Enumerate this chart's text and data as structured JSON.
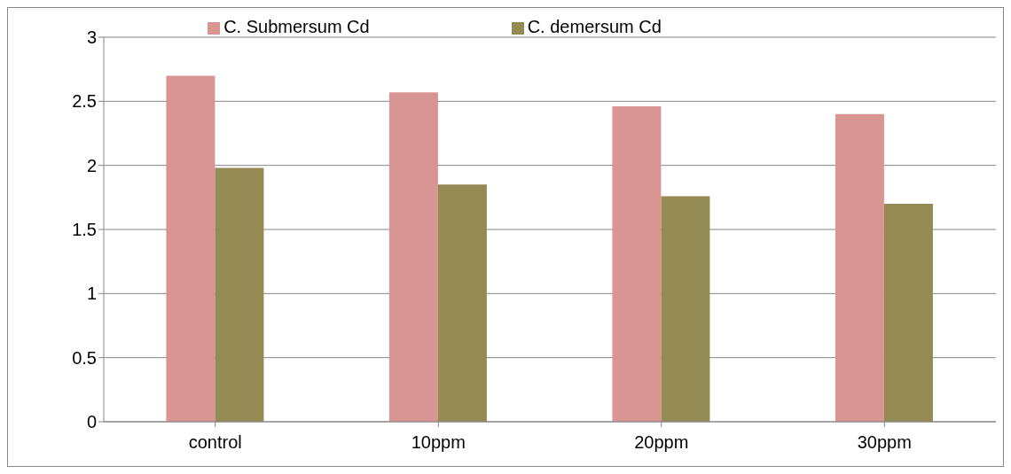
{
  "chart_data": {
    "type": "bar",
    "categories": [
      "control",
      "10ppm",
      "20ppm",
      "30ppm"
    ],
    "series": [
      {
        "name": "C. Submersum Cd",
        "color": "#d99594",
        "values": [
          2.7,
          2.57,
          2.46,
          2.4
        ]
      },
      {
        "name": "C. demersum Cd",
        "color": "#948a54",
        "values": [
          1.98,
          1.85,
          1.76,
          1.7
        ]
      }
    ],
    "ylim": [
      0,
      3
    ],
    "yticks": [
      0,
      0.5,
      1,
      1.5,
      2,
      2.5,
      3
    ],
    "grid": "y",
    "legend": "top"
  }
}
